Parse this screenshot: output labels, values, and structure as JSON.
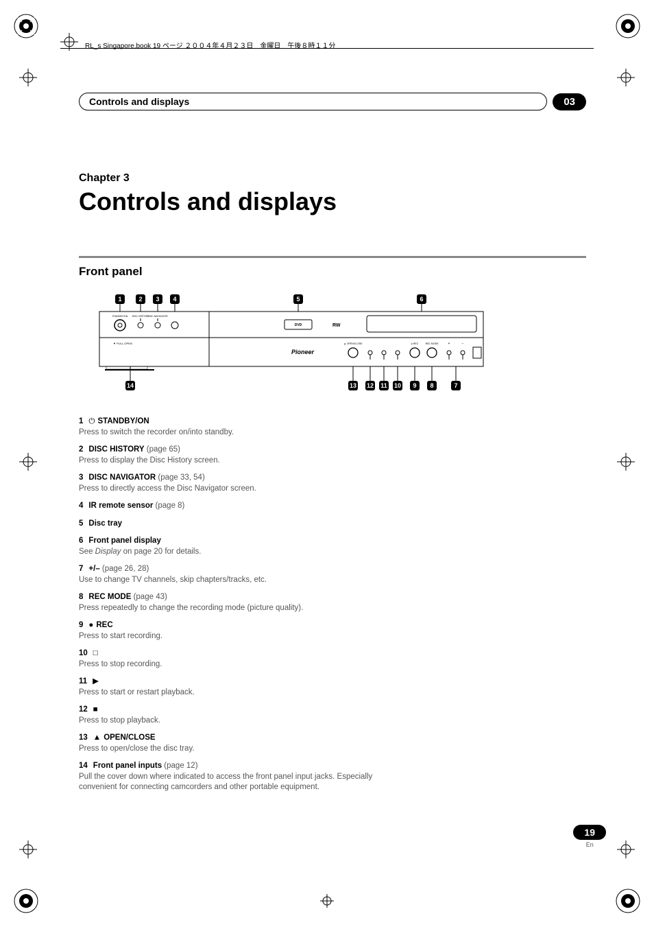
{
  "print_header": "RL_s Singapore.book  19 ページ  ２００４年４月２３日　金曜日　午後８時１１分",
  "section_header": {
    "title": "Controls and displays",
    "num": "03"
  },
  "chapter": {
    "label": "Chapter 3",
    "title": "Controls and displays"
  },
  "front_panel_label": "Front panel",
  "diagram": {
    "callouts_top": [
      "1",
      "2",
      "3",
      "4",
      "5",
      "6"
    ],
    "callouts_bottom": [
      "14",
      "13",
      "12",
      "11",
      "10",
      "9",
      "8",
      "7"
    ],
    "device_labels": {
      "standby": "STANDBY/ON",
      "history": "DISC HISTORY",
      "navigator": "DISC NAVIGATOR",
      "pulldown": "▼ PULL-OPEN",
      "brand": "Pioneer",
      "dvd": "DVD",
      "rw": "RW",
      "openclose": "▲ OPEN/CLOSE",
      "rec": "● REC",
      "recmode": "REC MODE",
      "plus": "+",
      "minus": "−"
    },
    "colors": {
      "outline": "#000000",
      "fill": "#ffffff",
      "callout_bg": "#000000",
      "callout_fg": "#ffffff"
    }
  },
  "items": [
    {
      "num": "1",
      "icon": "⏻",
      "title": "STANDBY/ON",
      "page": "",
      "desc": "Press to switch the recorder on/into standby."
    },
    {
      "num": "2",
      "icon": "",
      "title": "DISC HISTORY",
      "page": " (page 65)",
      "desc": "Press to display the Disc History screen."
    },
    {
      "num": "3",
      "icon": "",
      "title": "DISC NAVIGATOR",
      "page": " (page 33, 54)",
      "desc": "Press to directly access the Disc Navigator screen."
    },
    {
      "num": "4",
      "icon": "",
      "title": "IR remote sensor",
      "page": " (page 8)",
      "desc": ""
    },
    {
      "num": "5",
      "icon": "",
      "title": "Disc tray",
      "page": "",
      "desc": ""
    },
    {
      "num": "6",
      "icon": "",
      "title": "Front panel display",
      "page": "",
      "desc": "See {ital}Display{/ital} on page 20 for details."
    },
    {
      "num": "7",
      "icon": "",
      "title": "+/–",
      "page": " (page 26, 28)",
      "desc": "Use to change TV channels, skip chapters/tracks, etc."
    },
    {
      "num": "8",
      "icon": "",
      "title": "REC MODE",
      "page": " (page 43)",
      "desc": "Press repeatedly to change the recording mode (picture quality)."
    },
    {
      "num": "9",
      "icon": "●",
      "title": "REC",
      "page": "",
      "desc": "Press to start recording."
    },
    {
      "num": "10",
      "icon": "□",
      "title": "",
      "page": "",
      "desc": "Press to stop recording."
    },
    {
      "num": "11",
      "icon": "▶",
      "title": "",
      "page": "",
      "desc": "Press to start or restart playback."
    },
    {
      "num": "12",
      "icon": "■",
      "title": "",
      "page": "",
      "desc": "Press to stop playback."
    },
    {
      "num": "13",
      "icon": "▲",
      "title": "OPEN/CLOSE",
      "page": "",
      "desc": "Press to open/close the disc tray."
    },
    {
      "num": "14",
      "icon": "",
      "title": "Front panel inputs",
      "page": " (page 12)",
      "desc": "Pull the cover down where indicated to access the front panel input jacks. Especially convenient for connecting camcorders and other portable equipment."
    }
  ],
  "page_footer": {
    "num": "19",
    "lang": "En"
  }
}
